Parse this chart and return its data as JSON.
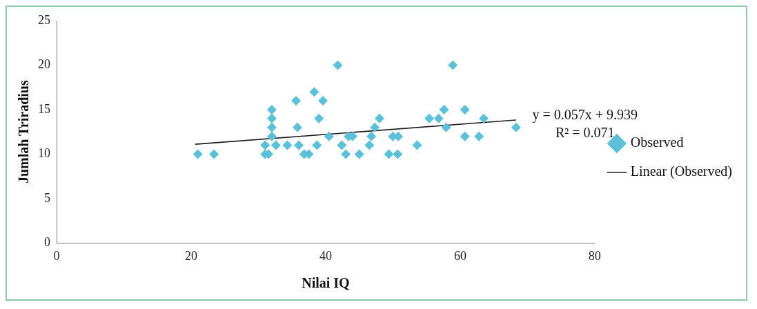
{
  "chart_data": {
    "type": "scatter",
    "xlabel": "Nilai IQ",
    "ylabel": "Jumlah Triradius",
    "xlim": [
      0,
      80
    ],
    "ylim": [
      0,
      25
    ],
    "xticks": [
      0,
      20,
      40,
      60,
      80
    ],
    "yticks": [
      0,
      5,
      10,
      15,
      20,
      25
    ],
    "grid": false,
    "legend": "right",
    "marker": "diamond",
    "annotations": [
      "y = 0.057x + 9.939",
      "R² = 0.071"
    ],
    "series": [
      {
        "name": "Observed",
        "color": "#5bc0d8",
        "x": [
          21,
          23.4,
          31,
          31,
          31.5,
          32,
          32,
          32,
          32,
          32.6,
          34.3,
          35.6,
          35.8,
          36,
          36.8,
          37.5,
          38.3,
          38.7,
          39,
          39.6,
          40.5,
          41.8,
          42.4,
          43,
          43.4,
          44,
          45,
          46.5,
          46.8,
          47.3,
          48,
          49.4,
          50,
          50.7,
          50.8,
          53.6,
          55.4,
          56.8,
          57.6,
          57.9,
          58.9,
          60.7,
          60.7,
          62.8,
          63.5,
          68.3
        ],
        "values": [
          10,
          10,
          10,
          11,
          10,
          15,
          14,
          13,
          12,
          11,
          11,
          16,
          13,
          11,
          10,
          10,
          17,
          11,
          14,
          16,
          12,
          20,
          11,
          10,
          12,
          12,
          10,
          11,
          12,
          13,
          14,
          10,
          12,
          10,
          12,
          11,
          14,
          14,
          15,
          13,
          20,
          15,
          12,
          12,
          14,
          13
        ]
      },
      {
        "name": "Linear (Observed)",
        "type": "line",
        "color": "#1a1a1a",
        "marker": "none",
        "x": [
          20.6,
          68.3
        ],
        "values": [
          11.11,
          13.83
        ]
      }
    ]
  }
}
